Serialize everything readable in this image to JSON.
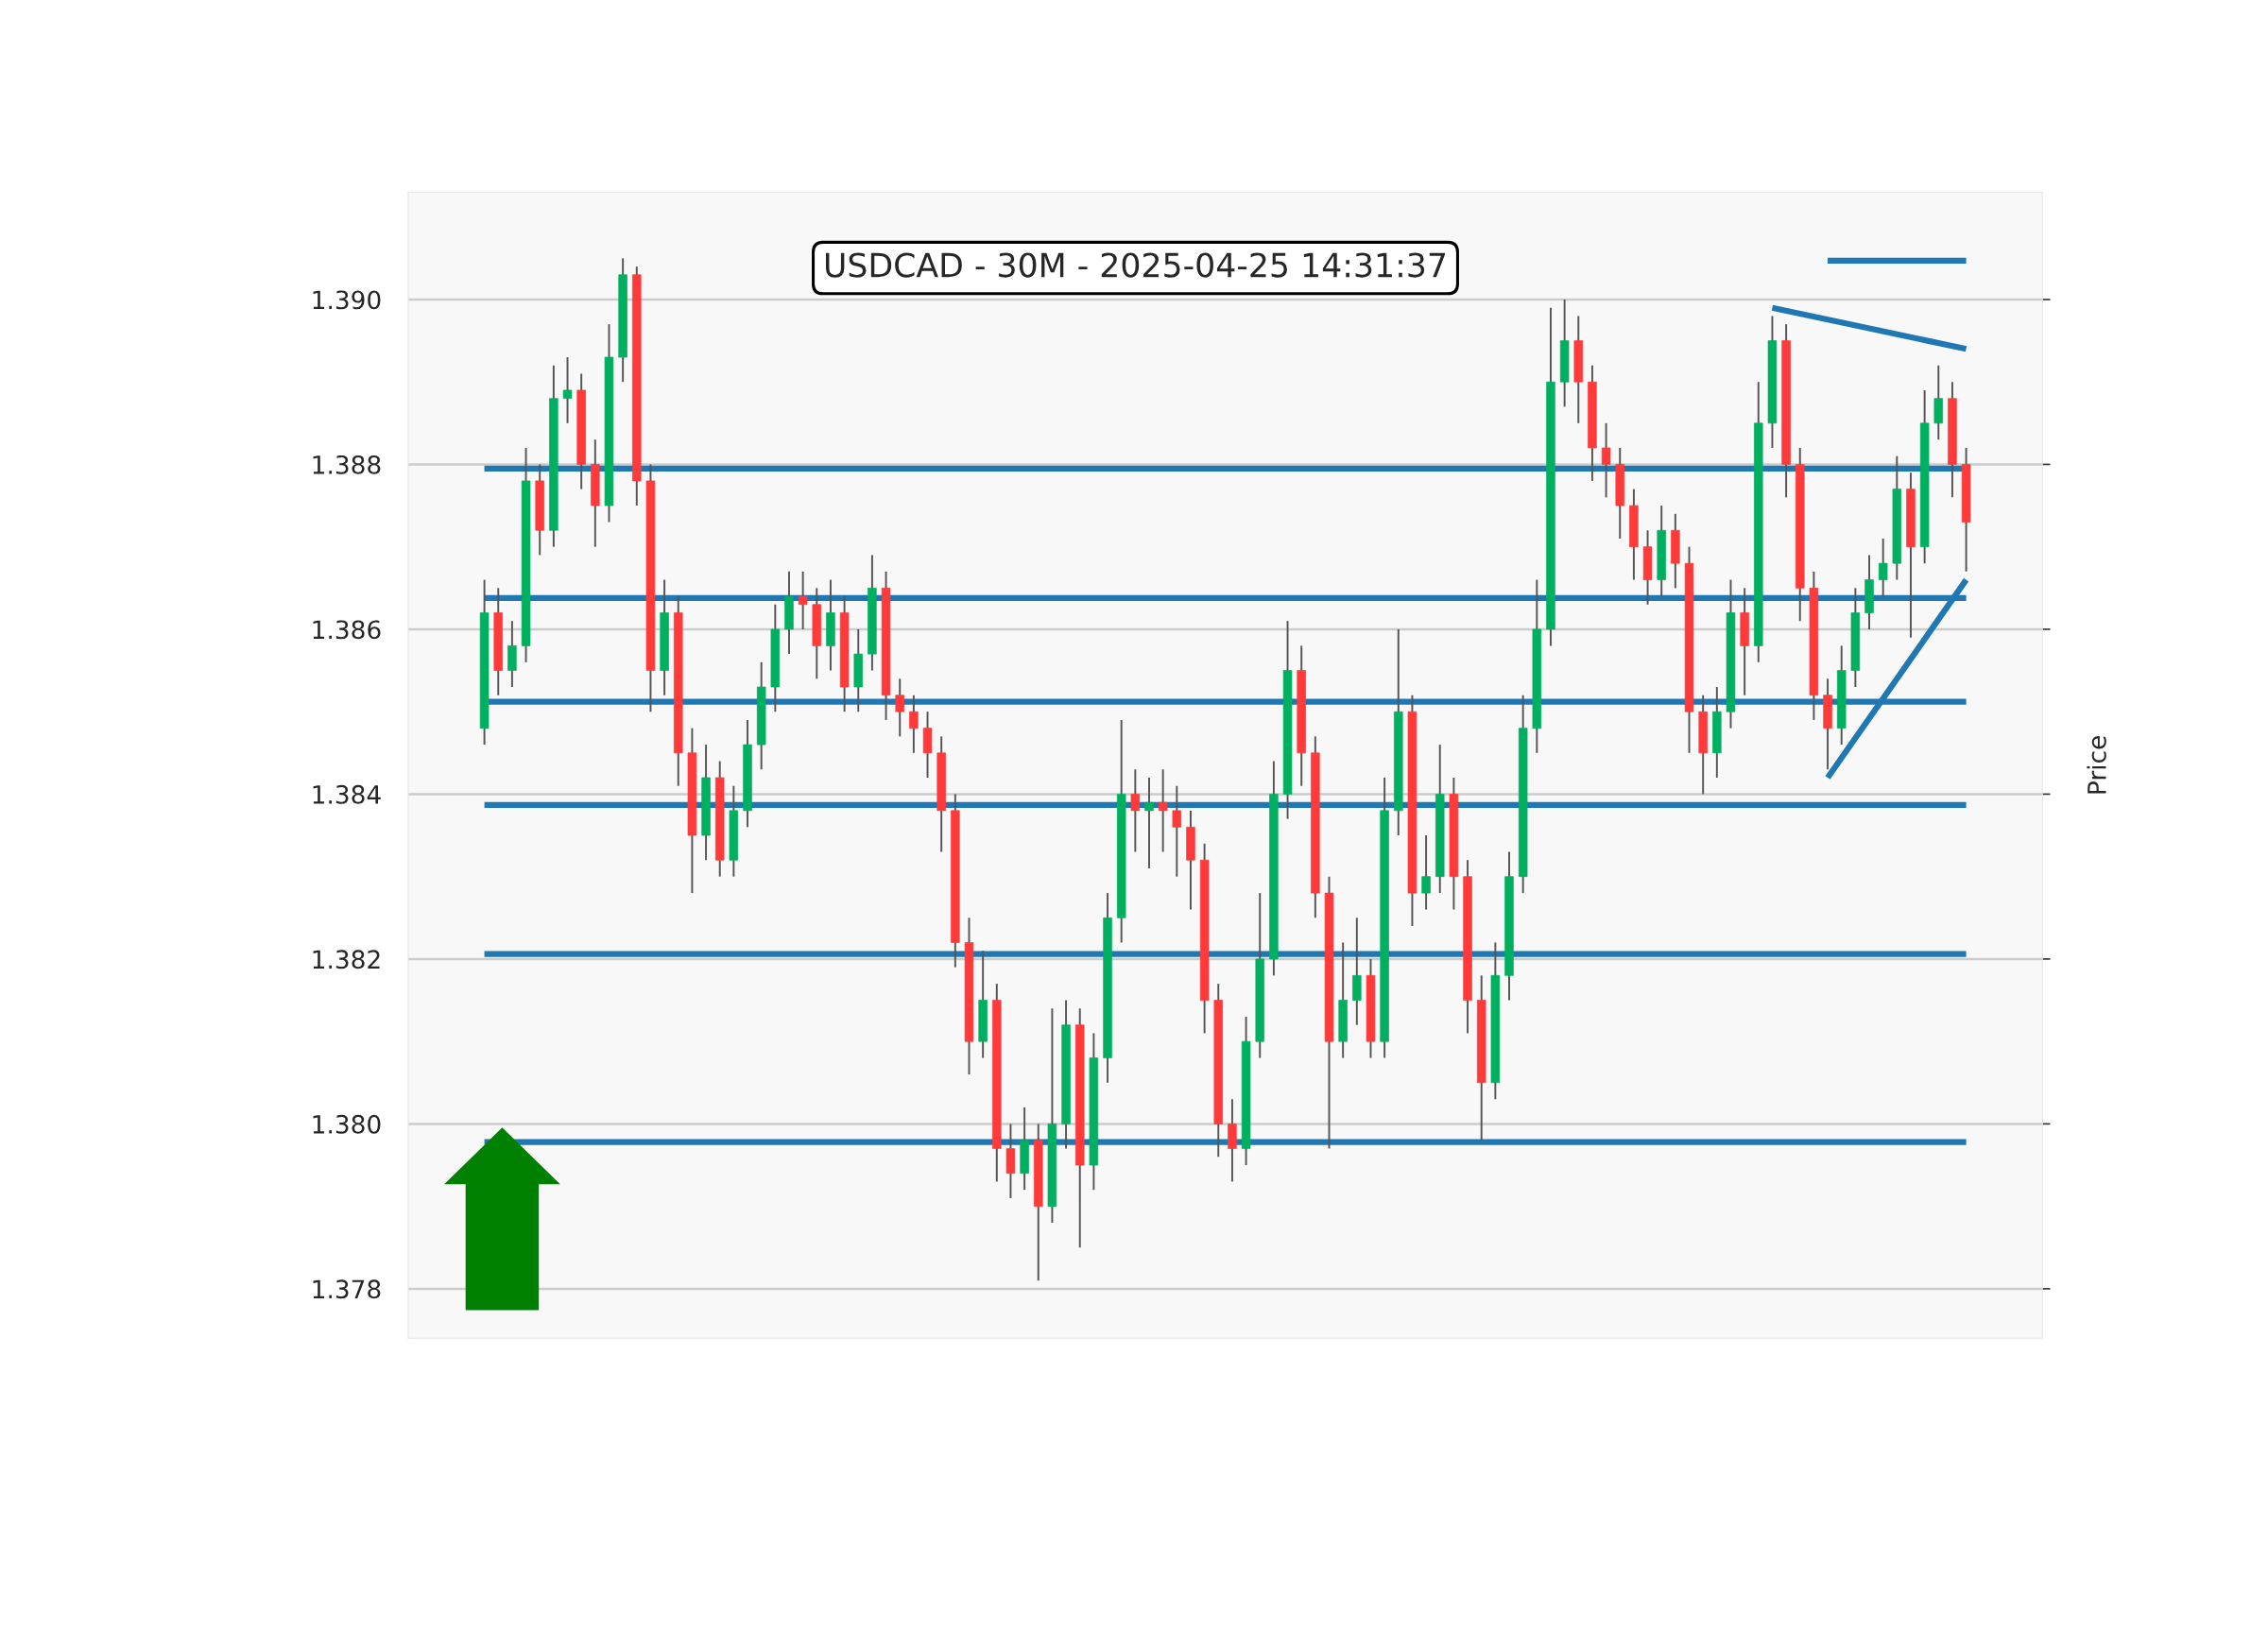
{
  "chart_data": {
    "type": "candlestick",
    "title": "USDCAD - 30M - 2025-04-25 14:31:37",
    "ylabel": "Price",
    "categories": [
      null,
      null,
      null,
      null,
      null,
      null,
      null,
      null,
      null,
      null,
      null,
      null,
      null,
      null,
      null,
      null,
      null,
      null,
      null,
      null,
      null,
      null,
      null,
      null,
      null,
      null,
      null,
      null,
      null,
      null,
      null,
      null,
      null,
      null,
      null,
      null,
      null,
      null,
      null,
      null,
      null,
      null,
      null,
      null,
      null,
      null,
      null,
      null,
      null,
      null,
      null,
      null,
      null,
      null,
      null,
      null,
      null,
      null,
      null,
      null,
      null,
      null,
      null,
      null,
      null,
      null,
      null,
      null,
      null,
      null,
      null,
      null,
      null,
      null,
      null,
      null,
      null,
      null,
      null,
      null,
      null,
      null,
      null,
      null,
      null,
      null,
      null,
      null,
      null,
      null,
      null,
      null,
      null,
      null,
      null,
      null,
      null,
      null,
      null,
      null,
      null,
      null,
      null,
      null,
      null,
      null,
      null,
      null
    ],
    "ohlc": [
      [
        1.3848,
        1.3866,
        1.3846,
        1.3862
      ],
      [
        1.3862,
        1.3865,
        1.3852,
        1.3855
      ],
      [
        1.3855,
        1.3861,
        1.3853,
        1.3858
      ],
      [
        1.3858,
        1.3882,
        1.3856,
        1.3878
      ],
      [
        1.3878,
        1.388,
        1.3869,
        1.3872
      ],
      [
        1.3872,
        1.3892,
        1.387,
        1.3888
      ],
      [
        1.3888,
        1.3893,
        1.3885,
        1.3889
      ],
      [
        1.3889,
        1.3891,
        1.3877,
        1.388
      ],
      [
        1.388,
        1.3883,
        1.387,
        1.3875
      ],
      [
        1.3875,
        1.3897,
        1.3873,
        1.3893
      ],
      [
        1.3893,
        1.3905,
        1.389,
        1.3903
      ],
      [
        1.3903,
        1.3904,
        1.3875,
        1.3878
      ],
      [
        1.3878,
        1.388,
        1.385,
        1.3855
      ],
      [
        1.3855,
        1.3866,
        1.3852,
        1.3862
      ],
      [
        1.3862,
        1.3864,
        1.3841,
        1.3845
      ],
      [
        1.3845,
        1.3848,
        1.3828,
        1.3835
      ],
      [
        1.3835,
        1.3846,
        1.3832,
        1.3842
      ],
      [
        1.3842,
        1.3844,
        1.383,
        1.3832
      ],
      [
        1.3832,
        1.3841,
        1.383,
        1.3838
      ],
      [
        1.3838,
        1.3849,
        1.3836,
        1.3846
      ],
      [
        1.3846,
        1.3856,
        1.3843,
        1.3853
      ],
      [
        1.3853,
        1.3863,
        1.385,
        1.386
      ],
      [
        1.386,
        1.3867,
        1.3857,
        1.3864
      ],
      [
        1.3864,
        1.3867,
        1.386,
        1.3863
      ],
      [
        1.3863,
        1.3865,
        1.3854,
        1.3858
      ],
      [
        1.3858,
        1.3866,
        1.3855,
        1.3862
      ],
      [
        1.3862,
        1.3864,
        1.385,
        1.3853
      ],
      [
        1.3853,
        1.386,
        1.385,
        1.3857
      ],
      [
        1.3857,
        1.3869,
        1.3855,
        1.3865
      ],
      [
        1.3865,
        1.3867,
        1.3849,
        1.3852
      ],
      [
        1.3852,
        1.3854,
        1.3847,
        1.385
      ],
      [
        1.385,
        1.3852,
        1.3845,
        1.3848
      ],
      [
        1.3848,
        1.385,
        1.3842,
        1.3845
      ],
      [
        1.3845,
        1.3847,
        1.3833,
        1.3838
      ],
      [
        1.3838,
        1.384,
        1.3819,
        1.3822
      ],
      [
        1.3822,
        1.3825,
        1.3806,
        1.381
      ],
      [
        1.381,
        1.3821,
        1.3808,
        1.3815
      ],
      [
        1.3815,
        1.3817,
        1.3793,
        1.3797
      ],
      [
        1.3797,
        1.38,
        1.3791,
        1.3794
      ],
      [
        1.3794,
        1.3802,
        1.3792,
        1.3798
      ],
      [
        1.3798,
        1.38,
        1.3781,
        1.379
      ],
      [
        1.379,
        1.3814,
        1.3788,
        1.38
      ],
      [
        1.38,
        1.3815,
        1.3797,
        1.3812
      ],
      [
        1.3812,
        1.3814,
        1.3785,
        1.3795
      ],
      [
        1.3795,
        1.3811,
        1.3792,
        1.3808
      ],
      [
        1.3808,
        1.3828,
        1.3805,
        1.3825
      ],
      [
        1.3825,
        1.3849,
        1.3822,
        1.384
      ],
      [
        1.384,
        1.3843,
        1.3833,
        1.3838
      ],
      [
        1.3838,
        1.3842,
        1.3831,
        1.3839
      ],
      [
        1.3839,
        1.3843,
        1.3833,
        1.3838
      ],
      [
        1.3838,
        1.3841,
        1.383,
        1.3836
      ],
      [
        1.3836,
        1.3838,
        1.3826,
        1.3832
      ],
      [
        1.3832,
        1.3834,
        1.3811,
        1.3815
      ],
      [
        1.3815,
        1.3817,
        1.3796,
        1.38
      ],
      [
        1.38,
        1.3803,
        1.3793,
        1.3797
      ],
      [
        1.3797,
        1.3813,
        1.3795,
        1.381
      ],
      [
        1.381,
        1.3828,
        1.3808,
        1.382
      ],
      [
        1.382,
        1.3844,
        1.3818,
        1.384
      ],
      [
        1.384,
        1.3861,
        1.3837,
        1.3855
      ],
      [
        1.3855,
        1.3858,
        1.3841,
        1.3845
      ],
      [
        1.3845,
        1.3847,
        1.3825,
        1.3828
      ],
      [
        1.3828,
        1.383,
        1.3797,
        1.381
      ],
      [
        1.381,
        1.3822,
        1.3808,
        1.3815
      ],
      [
        1.3815,
        1.3825,
        1.3812,
        1.3818
      ],
      [
        1.3818,
        1.382,
        1.3808,
        1.381
      ],
      [
        1.381,
        1.3842,
        1.3808,
        1.3838
      ],
      [
        1.3838,
        1.386,
        1.3835,
        1.385
      ],
      [
        1.385,
        1.3852,
        1.3824,
        1.3828
      ],
      [
        1.3828,
        1.3835,
        1.3826,
        1.383
      ],
      [
        1.383,
        1.3846,
        1.3828,
        1.384
      ],
      [
        1.384,
        1.3842,
        1.3826,
        1.383
      ],
      [
        1.383,
        1.3832,
        1.3811,
        1.3815
      ],
      [
        1.3815,
        1.3818,
        1.3798,
        1.3805
      ],
      [
        1.3805,
        1.3822,
        1.3803,
        1.3818
      ],
      [
        1.3818,
        1.3833,
        1.3815,
        1.383
      ],
      [
        1.383,
        1.3852,
        1.3828,
        1.3848
      ],
      [
        1.3848,
        1.3866,
        1.3845,
        1.386
      ],
      [
        1.386,
        1.3899,
        1.3858,
        1.389
      ],
      [
        1.389,
        1.39,
        1.3887,
        1.3895
      ],
      [
        1.3895,
        1.3898,
        1.3885,
        1.389
      ],
      [
        1.389,
        1.3892,
        1.3878,
        1.3882
      ],
      [
        1.3882,
        1.3885,
        1.3876,
        1.388
      ],
      [
        1.388,
        1.3882,
        1.3871,
        1.3875
      ],
      [
        1.3875,
        1.3877,
        1.3866,
        1.387
      ],
      [
        1.387,
        1.3872,
        1.3863,
        1.3866
      ],
      [
        1.3866,
        1.3875,
        1.3864,
        1.3872
      ],
      [
        1.3872,
        1.3874,
        1.3865,
        1.3868
      ],
      [
        1.3868,
        1.387,
        1.3845,
        1.385
      ],
      [
        1.385,
        1.3852,
        1.384,
        1.3845
      ],
      [
        1.3845,
        1.3853,
        1.3842,
        1.385
      ],
      [
        1.385,
        1.3866,
        1.3848,
        1.3862
      ],
      [
        1.3862,
        1.3865,
        1.3852,
        1.3858
      ],
      [
        1.3858,
        1.389,
        1.3856,
        1.3885
      ],
      [
        1.3885,
        1.3898,
        1.3882,
        1.3895
      ],
      [
        1.3895,
        1.3897,
        1.3876,
        1.388
      ],
      [
        1.388,
        1.3882,
        1.3861,
        1.3865
      ],
      [
        1.3865,
        1.3867,
        1.3849,
        1.3852
      ],
      [
        1.3852,
        1.3854,
        1.3843,
        1.3848
      ],
      [
        1.3848,
        1.3858,
        1.3846,
        1.3855
      ],
      [
        1.3855,
        1.3865,
        1.3853,
        1.3862
      ],
      [
        1.3862,
        1.3869,
        1.386,
        1.3866
      ],
      [
        1.3866,
        1.3871,
        1.3864,
        1.3868
      ],
      [
        1.3868,
        1.3881,
        1.3866,
        1.3877
      ],
      [
        1.3877,
        1.3879,
        1.3859,
        1.387
      ],
      [
        1.387,
        1.3889,
        1.3868,
        1.3885
      ],
      [
        1.3885,
        1.3892,
        1.3883,
        1.3888
      ],
      [
        1.3888,
        1.389,
        1.3876,
        1.388
      ],
      [
        1.388,
        1.3882,
        1.3867,
        1.3873
      ]
    ],
    "colors": [
      "#00b060",
      "#ff3a3a",
      "#00b060",
      "#00b060",
      "#ff3a3a",
      "#00b060",
      "#00b060",
      "#ff3a3a",
      "#ff3a3a",
      "#00b060",
      "#00b060",
      "#ff3a3a",
      "#ff3a3a",
      "#00b060",
      "#ff3a3a",
      "#ff3a3a",
      "#00b060",
      "#ff3a3a",
      "#00b060",
      "#00b060",
      "#00b060",
      "#00b060",
      "#00b060",
      "#ff3a3a",
      "#ff3a3a",
      "#00b060",
      "#ff3a3a",
      "#00b060",
      "#00b060",
      "#ff3a3a",
      "#ff3a3a",
      "#ff3a3a",
      "#ff3a3a",
      "#ff3a3a",
      "#ff3a3a",
      "#ff3a3a",
      "#00b060",
      "#ff3a3a",
      "#ff3a3a",
      "#00b060",
      "#ff3a3a",
      "#00b060",
      "#00b060",
      "#ff3a3a",
      "#00b060",
      "#00b060",
      "#00b060",
      "#ff3a3a",
      "#00b060",
      "#ff3a3a",
      "#ff3a3a",
      "#ff3a3a",
      "#ff3a3a",
      "#ff3a3a",
      "#ff3a3a",
      "#00b060",
      "#00b060",
      "#00b060",
      "#00b060",
      "#ff3a3a",
      "#ff3a3a",
      "#ff3a3a",
      "#00b060",
      "#00b060",
      "#ff3a3a",
      "#00b060",
      "#00b060",
      "#ff3a3a",
      "#00b060",
      "#00b060",
      "#ff3a3a",
      "#ff3a3a",
      "#ff3a3a",
      "#00b060",
      "#00b060",
      "#00b060",
      "#00b060",
      "#00b060",
      "#00b060",
      "#ff3a3a",
      "#ff3a3a",
      "#ff3a3a",
      "#ff3a3a",
      "#ff3a3a",
      "#ff3a3a",
      "#00b060",
      "#ff3a3a",
      "#ff3a3a",
      "#ff3a3a",
      "#00b060",
      "#00b060",
      "#ff3a3a",
      "#00b060",
      "#00b060",
      "#ff3a3a",
      "#ff3a3a",
      "#ff3a3a",
      "#ff3a3a",
      "#00b060",
      "#00b060",
      "#00b060",
      "#00b060",
      "#00b060",
      "#ff3a3a",
      "#00b060",
      "#00b060",
      "#ff3a3a",
      "#ff3a3a"
    ],
    "series": [
      {
        "type": "line",
        "color": "#1f77b4",
        "values": [
          null,
          null,
          null,
          null,
          null,
          null,
          null,
          null,
          null,
          null,
          null,
          null,
          null,
          null,
          null,
          null,
          null,
          null,
          null,
          null,
          null,
          null,
          null,
          null,
          null,
          null,
          null,
          null,
          null,
          null,
          null,
          null,
          null,
          null,
          null,
          null,
          null,
          null,
          null,
          null,
          null,
          null,
          null,
          null,
          null,
          null,
          null,
          null,
          null,
          null,
          null,
          null,
          null,
          null,
          null,
          null,
          null,
          null,
          null,
          null,
          null,
          null,
          null,
          null,
          null,
          null,
          null,
          null,
          null,
          null,
          null,
          null,
          null,
          null,
          null,
          null,
          null,
          null,
          null,
          null,
          null,
          null,
          null,
          null,
          null,
          null,
          null,
          null,
          null,
          null,
          null,
          null,
          null,
          null,
          null,
          null,
          null,
          1.39047,
          null,
          null,
          null,
          null,
          null,
          null,
          null,
          null,
          null,
          1.39047
        ]
      },
      {
        "type": "line",
        "color": "#1f77b4",
        "values": [
          null,
          null,
          null,
          null,
          null,
          null,
          null,
          null,
          null,
          null,
          null,
          null,
          null,
          null,
          null,
          null,
          null,
          null,
          null,
          null,
          null,
          null,
          null,
          null,
          null,
          null,
          null,
          null,
          null,
          null,
          null,
          null,
          null,
          null,
          null,
          null,
          null,
          null,
          null,
          null,
          null,
          null,
          null,
          null,
          null,
          null,
          null,
          null,
          null,
          null,
          null,
          null,
          null,
          null,
          null,
          null,
          null,
          null,
          null,
          null,
          null,
          null,
          null,
          null,
          null,
          null,
          null,
          null,
          null,
          null,
          null,
          null,
          null,
          null,
          null,
          null,
          null,
          null,
          null,
          null,
          null,
          null,
          null,
          null,
          null,
          null,
          null,
          null,
          null,
          null,
          null,
          null,
          null,
          1.3899,
          null,
          null,
          null,
          null,
          null,
          null,
          null,
          null,
          null,
          null,
          null,
          null,
          null,
          1.3894
        ]
      },
      {
        "type": "line",
        "color": "#1f77b4",
        "values": [
          null,
          null,
          null,
          null,
          null,
          null,
          null,
          null,
          null,
          null,
          null,
          null,
          null,
          null,
          null,
          null,
          null,
          null,
          null,
          null,
          null,
          null,
          null,
          null,
          null,
          null,
          null,
          null,
          null,
          null,
          null,
          null,
          null,
          null,
          null,
          null,
          null,
          null,
          null,
          null,
          null,
          null,
          null,
          null,
          null,
          null,
          null,
          null,
          null,
          null,
          null,
          null,
          null,
          null,
          null,
          null,
          null,
          null,
          null,
          null,
          null,
          null,
          null,
          null,
          null,
          null,
          null,
          null,
          null,
          null,
          null,
          null,
          null,
          null,
          null,
          null,
          null,
          null,
          null,
          null,
          null,
          null,
          null,
          null,
          null,
          null,
          null,
          null,
          null,
          null,
          null,
          null,
          null,
          null,
          null,
          null,
          null,
          1.3842,
          null,
          null,
          null,
          null,
          null,
          null,
          null,
          null,
          null,
          1.3866
        ]
      }
    ],
    "ref_lines": [
      {
        "axis": "y",
        "value": 1.38795,
        "color": "#1f77b4"
      },
      {
        "axis": "y",
        "value": 1.38638,
        "color": "#1f77b4"
      },
      {
        "axis": "y",
        "value": 1.38512,
        "color": "#1f77b4"
      },
      {
        "axis": "y",
        "value": 1.38387,
        "color": "#1f77b4"
      },
      {
        "axis": "y",
        "value": 1.38206,
        "color": "#1f77b4"
      },
      {
        "axis": "y",
        "value": 1.37978,
        "color": "#1f77b4"
      }
    ],
    "ylim": [
      1.3774,
      1.3913
    ],
    "yticks": [
      1.378,
      {
        "value": 1.38,
        "label": "1.380"
      },
      1.382,
      1.384,
      1.386,
      1.388,
      {
        "value": 1.39,
        "label": "1.390"
      }
    ],
    "grid": "y",
    "tick_labels": "y"
  }
}
